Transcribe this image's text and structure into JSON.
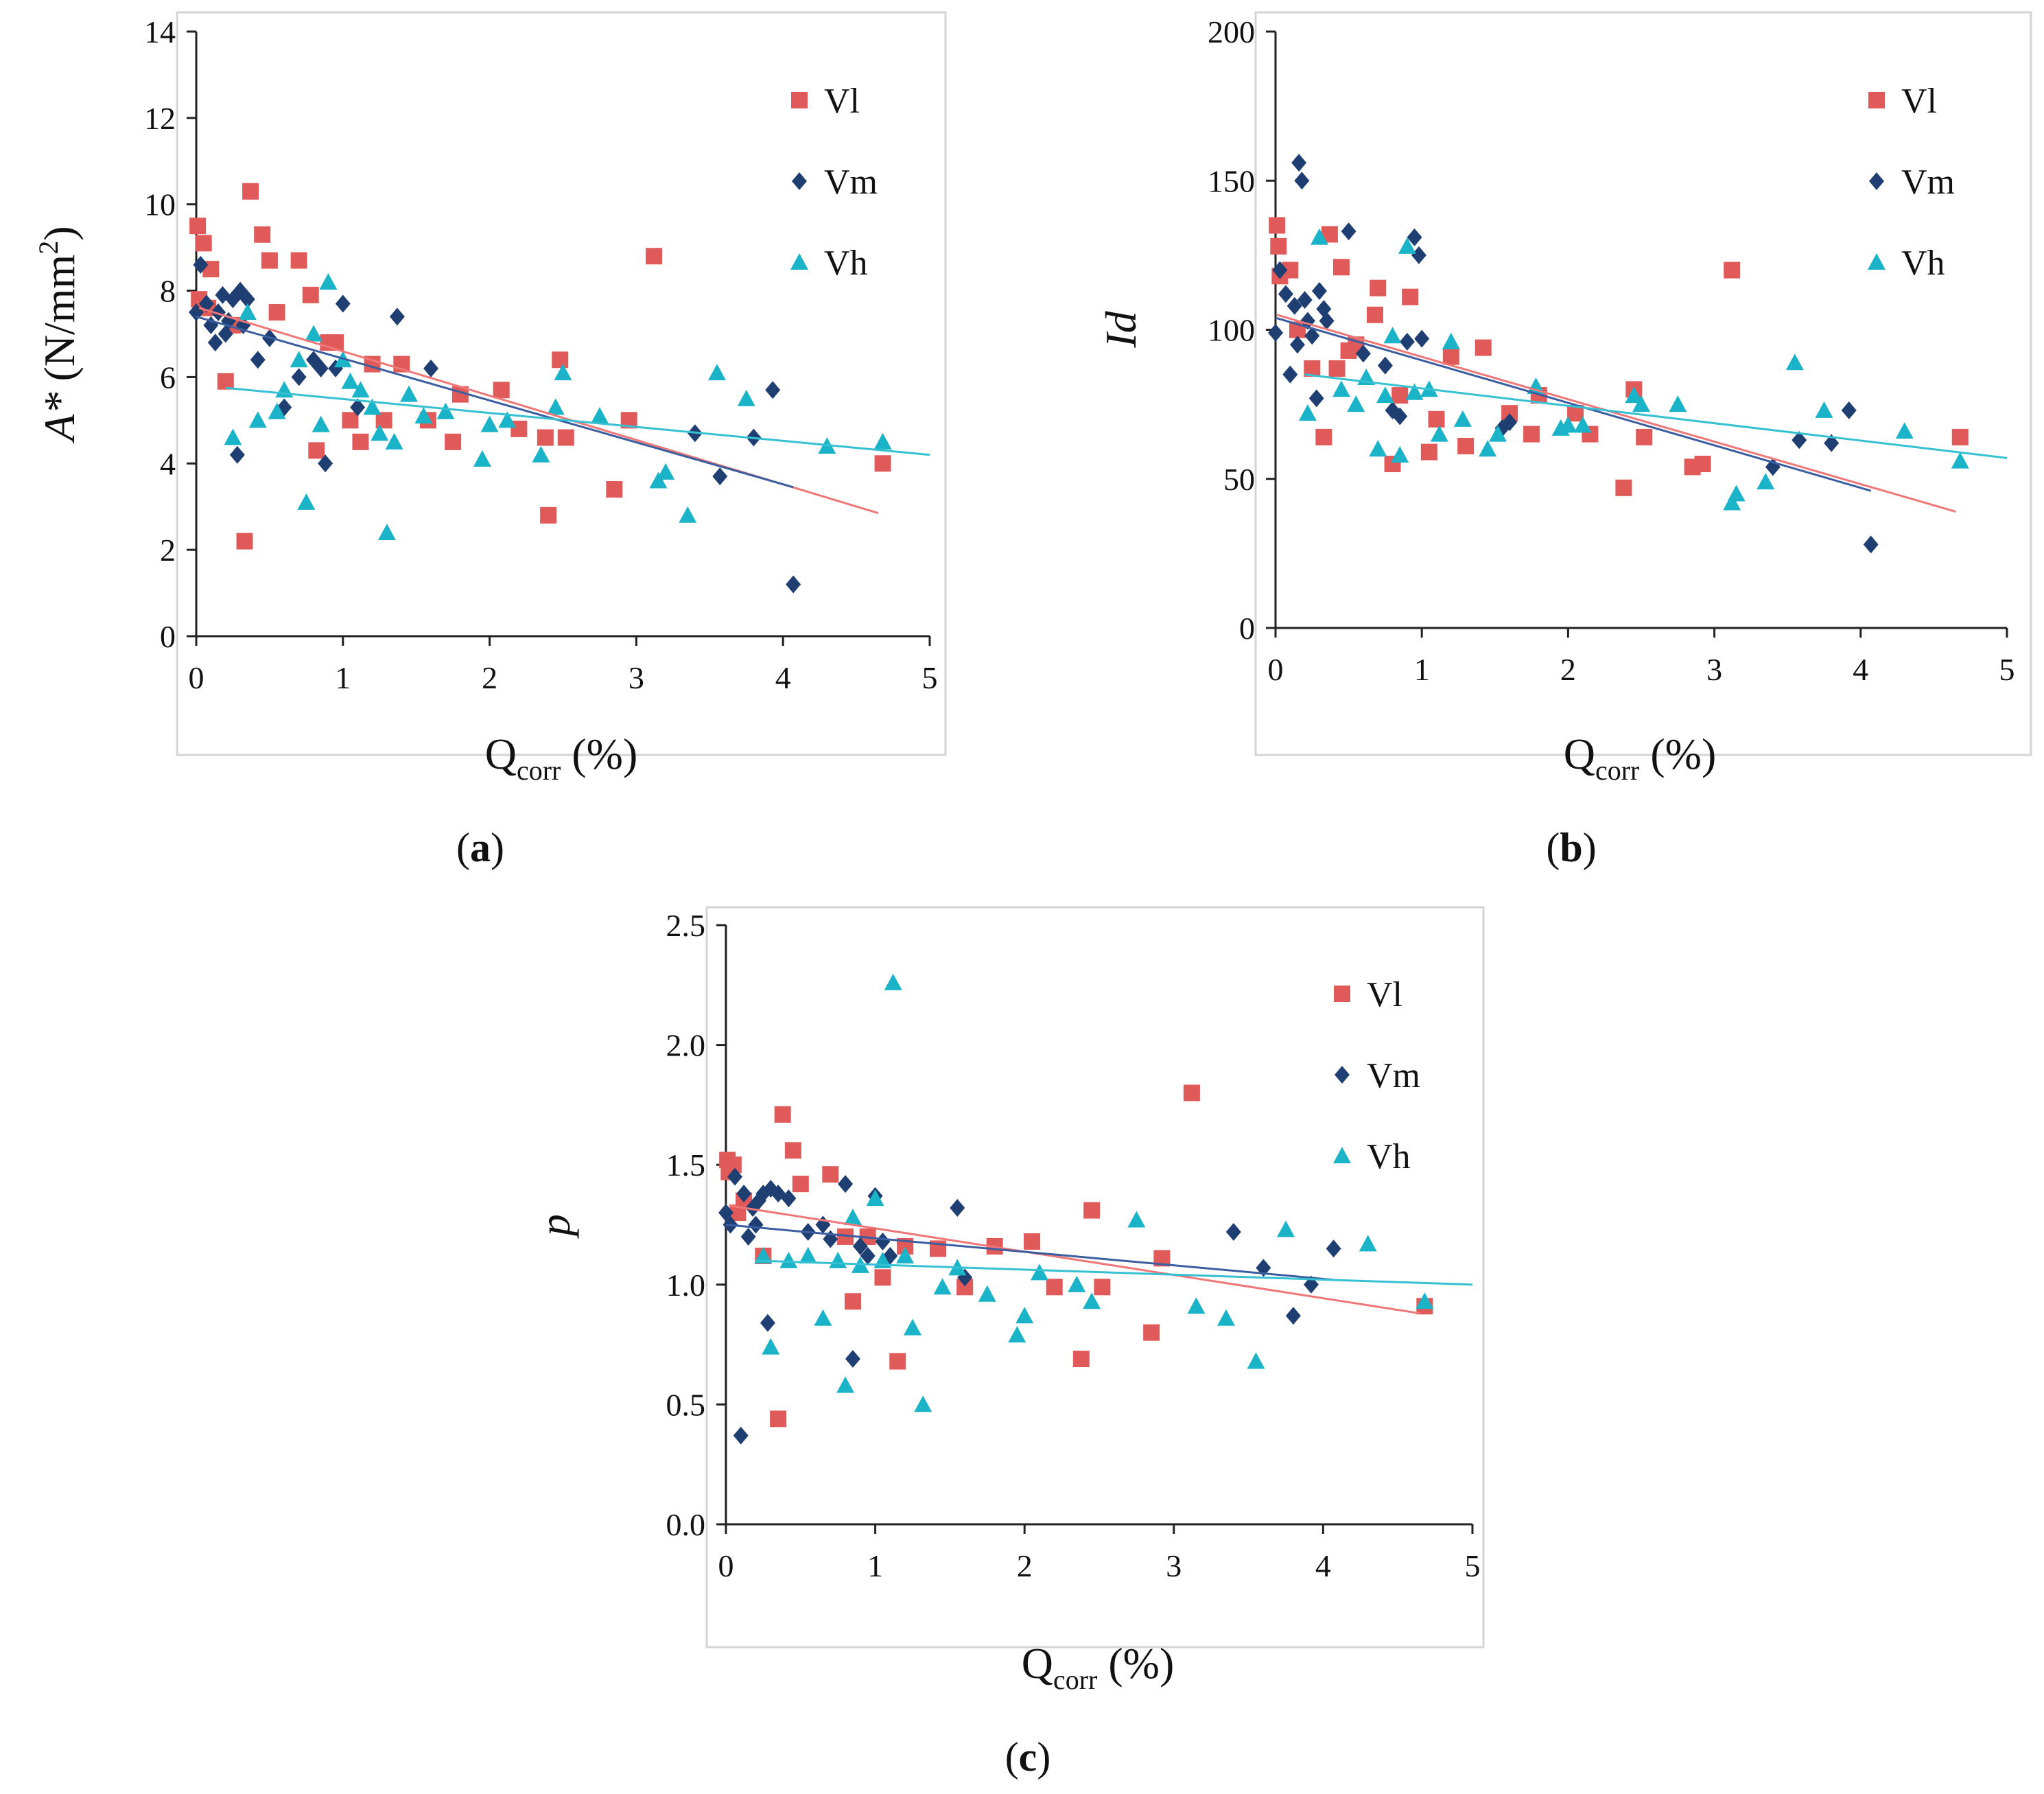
{
  "figure_title": "",
  "colors": {
    "Vl": "#E05A5A",
    "Vm": "#1F3F73",
    "Vh": "#1BB3C8",
    "trend_Vl": "#F07777",
    "trend_Vm": "#3A5EA0",
    "trend_Vh": "#36C1D2",
    "frame": "#D4D4D4",
    "axis": "#222222"
  },
  "panels": [
    {
      "panel_label": "(a)",
      "label_letter": "a",
      "ylabel_text": "A* (N/mm",
      "ylabel_sup": "2",
      "ylabel_close": ")",
      "xlabel_main": "Q",
      "xlabel_sub": "corr",
      "xlabel_unit": " (%)"
    },
    {
      "panel_label": "(b)",
      "label_letter": "b",
      "ylabel_text": "Id",
      "xlabel_main": "Q",
      "xlabel_sub": "corr",
      "xlabel_unit": " (%)"
    },
    {
      "panel_label": "(c)",
      "label_letter": "c",
      "ylabel_text": "p",
      "xlabel_main": "Q",
      "xlabel_sub": "corr",
      "xlabel_unit": " (%)"
    }
  ],
  "chart_data": [
    {
      "type": "scatter",
      "title": "",
      "xlabel": "Qcorr (%)",
      "ylabel": "A* (N/mm2)",
      "xlim": [
        0,
        5
      ],
      "ylim": [
        0,
        14
      ],
      "xticks": [
        "0",
        "1",
        "2",
        "3",
        "4",
        "5"
      ],
      "yticks": [
        "0",
        "2",
        "4",
        "6",
        "8",
        "10",
        "12",
        "14"
      ],
      "legend_position": "top-right",
      "series": [
        {
          "name": "Vl",
          "marker": "square",
          "x": [
            0.01,
            0.02,
            0.05,
            0.08,
            0.1,
            0.2,
            0.25,
            0.33,
            0.37,
            0.45,
            0.5,
            0.55,
            0.7,
            0.78,
            0.82,
            0.9,
            0.95,
            1.05,
            1.12,
            1.2,
            1.28,
            1.4,
            1.58,
            1.75,
            1.8,
            2.08,
            2.2,
            2.38,
            2.4,
            2.48,
            2.52,
            2.85,
            2.95,
            3.12,
            4.68
          ],
          "y": [
            9.5,
            7.8,
            9.1,
            7.6,
            8.5,
            5.9,
            7.2,
            2.2,
            10.3,
            9.3,
            8.7,
            7.5,
            8.7,
            7.9,
            4.3,
            6.8,
            6.8,
            5.0,
            4.5,
            6.3,
            5.0,
            6.3,
            5.0,
            4.5,
            5.6,
            5.7,
            4.8,
            4.6,
            2.8,
            6.4,
            4.6,
            3.4,
            5.0,
            8.8,
            4.0
          ]
        },
        {
          "name": "Vm",
          "marker": "diamond",
          "x": [
            0.0,
            0.03,
            0.07,
            0.1,
            0.13,
            0.15,
            0.18,
            0.2,
            0.22,
            0.25,
            0.28,
            0.3,
            0.32,
            0.35,
            0.42,
            0.5,
            0.6,
            0.7,
            0.8,
            0.85,
            0.88,
            0.95,
            1.0,
            1.1,
            1.37,
            1.6,
            3.4,
            3.57,
            3.8,
            3.93,
            4.07
          ],
          "y": [
            7.5,
            8.6,
            7.7,
            7.2,
            6.8,
            7.5,
            7.9,
            7.0,
            7.3,
            7.8,
            4.2,
            8.0,
            7.2,
            7.8,
            6.4,
            6.9,
            5.3,
            6.0,
            6.4,
            6.2,
            4.0,
            6.2,
            7.7,
            5.3,
            7.4,
            6.2,
            4.7,
            3.7,
            4.6,
            5.7,
            1.2
          ]
        },
        {
          "name": "Vh",
          "marker": "triangle",
          "x": [
            0.25,
            0.35,
            0.42,
            0.55,
            0.6,
            0.7,
            0.75,
            0.8,
            0.85,
            0.9,
            1.0,
            1.05,
            1.12,
            1.2,
            1.25,
            1.3,
            1.35,
            1.45,
            1.55,
            1.7,
            1.95,
            2.0,
            2.12,
            2.35,
            2.45,
            2.5,
            2.75,
            3.15,
            3.2,
            3.35,
            3.55,
            3.75,
            4.3,
            4.68
          ],
          "y": [
            4.6,
            7.5,
            5.0,
            5.2,
            5.7,
            6.4,
            3.1,
            7.0,
            4.9,
            8.2,
            6.4,
            5.9,
            5.7,
            5.3,
            4.7,
            2.4,
            4.5,
            5.6,
            5.1,
            5.2,
            4.1,
            4.9,
            5.0,
            4.2,
            5.3,
            6.1,
            5.1,
            3.6,
            3.8,
            2.8,
            6.1,
            5.5,
            4.4,
            4.5
          ]
        }
      ],
      "trendlines": [
        {
          "name": "Vl",
          "x": [
            0.02,
            4.65
          ],
          "y": [
            7.6,
            2.85
          ]
        },
        {
          "name": "Vm",
          "x": [
            0.0,
            4.07
          ],
          "y": [
            7.4,
            3.45
          ]
        },
        {
          "name": "Vh",
          "x": [
            0.2,
            5.0
          ],
          "y": [
            5.75,
            4.2
          ]
        }
      ]
    },
    {
      "type": "scatter",
      "title": "",
      "xlabel": "Qcorr (%)",
      "ylabel": "Id",
      "xlim": [
        0,
        5
      ],
      "ylim": [
        0,
        200
      ],
      "xticks": [
        "0",
        "1",
        "2",
        "3",
        "4",
        "5"
      ],
      "yticks": [
        "0",
        "50",
        "100",
        "150",
        "200"
      ],
      "legend_position": "top-right",
      "series": [
        {
          "name": "Vl",
          "marker": "square",
          "x": [
            0.01,
            0.02,
            0.03,
            0.1,
            0.15,
            0.25,
            0.33,
            0.37,
            0.42,
            0.45,
            0.5,
            0.55,
            0.68,
            0.7,
            0.8,
            0.85,
            0.92,
            1.05,
            1.1,
            1.2,
            1.3,
            1.42,
            1.6,
            1.75,
            1.8,
            2.05,
            2.15,
            2.38,
            2.45,
            2.52,
            2.85,
            2.92,
            3.12,
            4.68
          ],
          "y": [
            135,
            128,
            118,
            120,
            100,
            87,
            64,
            132,
            87,
            121,
            93,
            95,
            105,
            114,
            55,
            78,
            111,
            59,
            70,
            91,
            61,
            94,
            72,
            65,
            78,
            72,
            65,
            47,
            80,
            64,
            54,
            55,
            120,
            64
          ]
        },
        {
          "name": "Vm",
          "marker": "diamond",
          "x": [
            0.0,
            0.03,
            0.07,
            0.1,
            0.13,
            0.15,
            0.16,
            0.18,
            0.2,
            0.22,
            0.25,
            0.28,
            0.3,
            0.33,
            0.35,
            0.5,
            0.6,
            0.75,
            0.8,
            0.85,
            0.9,
            0.95,
            0.98,
            1.0,
            1.55,
            1.6,
            3.4,
            3.58,
            3.8,
            3.92,
            4.07
          ],
          "y": [
            99,
            120,
            112,
            85,
            108,
            95,
            156,
            150,
            110,
            103,
            98,
            77,
            113,
            107,
            103,
            133,
            92,
            88,
            73,
            71,
            96,
            131,
            125,
            97,
            67,
            69,
            54,
            63,
            62,
            73,
            28
          ]
        },
        {
          "name": "Vh",
          "marker": "triangle",
          "x": [
            0.22,
            0.3,
            0.45,
            0.55,
            0.62,
            0.7,
            0.75,
            0.8,
            0.85,
            0.9,
            0.95,
            1.05,
            1.12,
            1.2,
            1.28,
            1.45,
            1.52,
            1.78,
            1.95,
            2.0,
            2.1,
            2.45,
            2.5,
            2.75,
            3.12,
            3.15,
            3.35,
            3.55,
            3.75,
            4.3,
            4.68
          ],
          "y": [
            72,
            131,
            80,
            75,
            84,
            60,
            78,
            98,
            58,
            128,
            79,
            80,
            65,
            96,
            70,
            60,
            65,
            81,
            67,
            68,
            68,
            78,
            75,
            75,
            42,
            45,
            49,
            89,
            73,
            66,
            56
          ]
        }
      ],
      "trendlines": [
        {
          "name": "Vl",
          "x": [
            0.01,
            4.65
          ],
          "y": [
            105,
            39
          ]
        },
        {
          "name": "Vm",
          "x": [
            0.0,
            4.07
          ],
          "y": [
            104,
            46
          ]
        },
        {
          "name": "Vh",
          "x": [
            0.2,
            5.0
          ],
          "y": [
            85,
            57
          ]
        }
      ]
    },
    {
      "type": "scatter",
      "title": "",
      "xlabel": "Qcorr (%)",
      "ylabel": "p",
      "xlim": [
        0,
        5
      ],
      "ylim": [
        0,
        2.5
      ],
      "xticks": [
        "0",
        "1",
        "2",
        "3",
        "4",
        "5"
      ],
      "yticks": [
        "0.0",
        "0.5",
        "1.0",
        "1.5",
        "2.0",
        "2.5"
      ],
      "legend_position": "top-right",
      "series": [
        {
          "name": "Vl",
          "marker": "square",
          "x": [
            0.01,
            0.02,
            0.05,
            0.08,
            0.12,
            0.25,
            0.35,
            0.38,
            0.45,
            0.5,
            0.7,
            0.8,
            0.85,
            0.95,
            1.05,
            1.15,
            1.2,
            1.42,
            1.6,
            1.8,
            2.05,
            2.2,
            2.38,
            2.45,
            2.52,
            2.85,
            2.92,
            3.12,
            4.68
          ],
          "y": [
            1.52,
            1.47,
            1.5,
            1.3,
            1.35,
            1.12,
            0.44,
            1.71,
            1.56,
            1.42,
            1.46,
            1.2,
            0.93,
            1.2,
            1.03,
            0.68,
            1.16,
            1.15,
            0.99,
            1.16,
            1.18,
            0.99,
            0.69,
            1.31,
            0.99,
            0.8,
            1.11,
            1.8,
            0.91
          ]
        },
        {
          "name": "Vm",
          "marker": "diamond",
          "x": [
            0.0,
            0.03,
            0.06,
            0.1,
            0.12,
            0.15,
            0.18,
            0.2,
            0.22,
            0.25,
            0.28,
            0.3,
            0.35,
            0.42,
            0.55,
            0.65,
            0.7,
            0.8,
            0.85,
            0.9,
            0.95,
            1.0,
            1.05,
            1.1,
            1.55,
            1.6,
            3.4,
            3.6,
            3.8,
            3.92,
            4.07
          ],
          "y": [
            1.3,
            1.25,
            1.45,
            0.37,
            1.38,
            1.2,
            1.32,
            1.25,
            1.35,
            1.38,
            0.84,
            1.4,
            1.38,
            1.36,
            1.22,
            1.25,
            1.19,
            1.42,
            0.69,
            1.16,
            1.12,
            1.37,
            1.18,
            1.12,
            1.32,
            1.03,
            1.22,
            1.07,
            0.87,
            1.0,
            1.15
          ]
        },
        {
          "name": "Vh",
          "marker": "triangle",
          "x": [
            0.25,
            0.3,
            0.42,
            0.55,
            0.65,
            0.75,
            0.8,
            0.85,
            0.9,
            1.0,
            1.05,
            1.12,
            1.2,
            1.25,
            1.32,
            1.45,
            1.55,
            1.75,
            1.95,
            2.0,
            2.1,
            2.35,
            2.45,
            2.75,
            3.15,
            3.35,
            3.55,
            3.75,
            4.3,
            4.68
          ],
          "y": [
            1.12,
            0.74,
            1.1,
            1.12,
            0.86,
            1.1,
            0.58,
            1.28,
            1.08,
            1.36,
            1.1,
            2.26,
            1.12,
            0.82,
            0.5,
            0.99,
            1.07,
            0.96,
            0.79,
            0.87,
            1.05,
            1.0,
            0.93,
            1.27,
            0.91,
            0.86,
            0.68,
            1.23,
            1.17,
            0.93
          ]
        }
      ],
      "trendlines": [
        {
          "name": "Vl",
          "x": [
            0.02,
            4.65
          ],
          "y": [
            1.33,
            0.88
          ]
        },
        {
          "name": "Vm",
          "x": [
            0.0,
            4.07
          ],
          "y": [
            1.25,
            1.02
          ]
        },
        {
          "name": "Vh",
          "x": [
            0.2,
            5.0
          ],
          "y": [
            1.1,
            1.0
          ]
        }
      ]
    }
  ]
}
